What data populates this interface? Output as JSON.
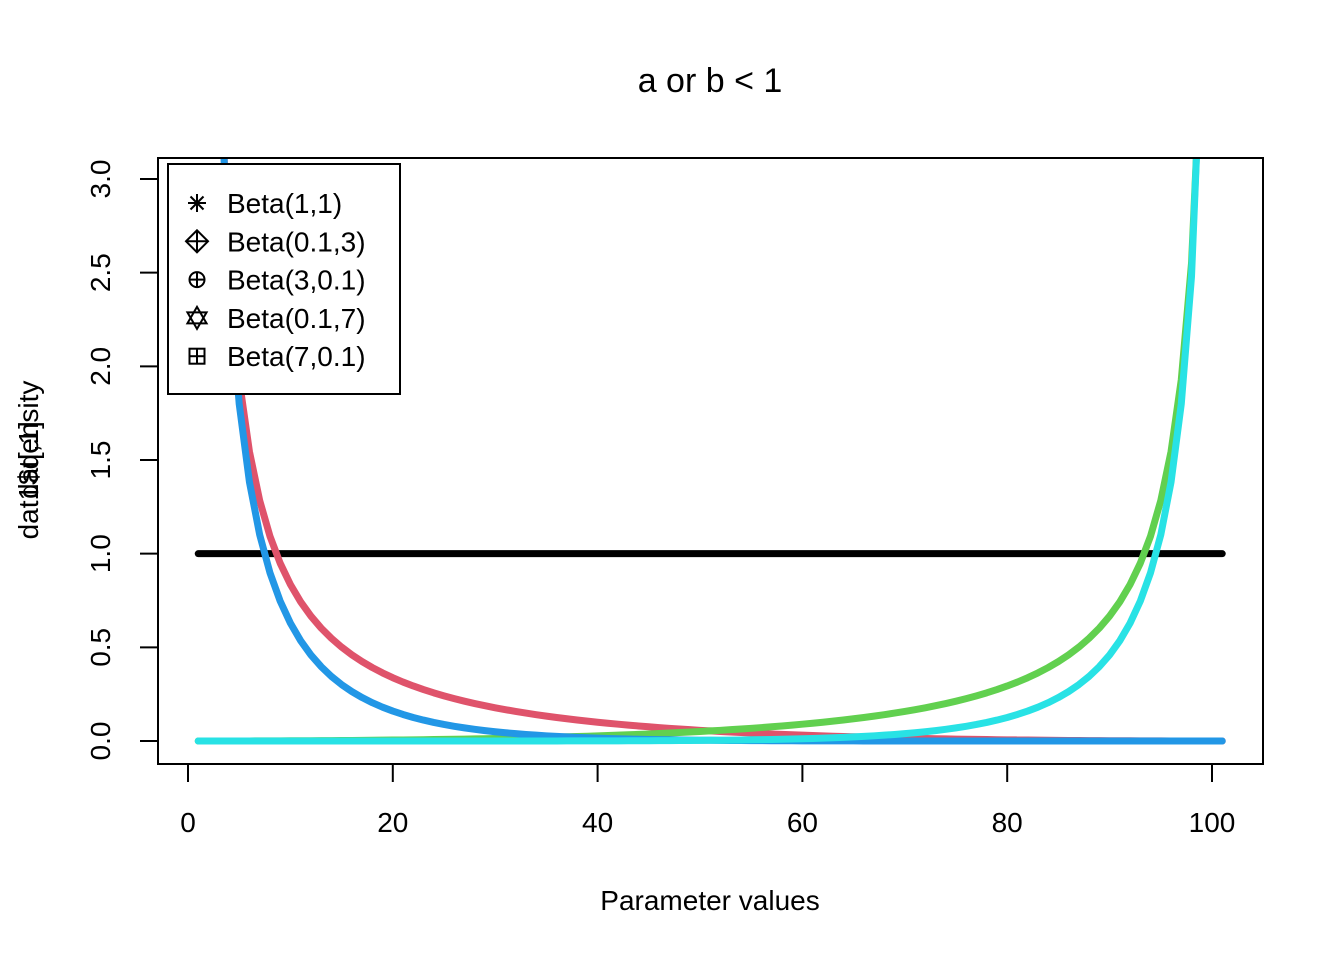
{
  "chart_data": {
    "type": "line",
    "title": "a or b  < 1",
    "xlabel": "Parameter values",
    "ylabel": "dat1$density",
    "ylabel_overprint": "dat[,1]",
    "xlim": [
      1,
      101
    ],
    "ylim": [
      0,
      3
    ],
    "xticks": [
      0,
      20,
      40,
      60,
      80,
      100
    ],
    "yticks": [
      0.0,
      0.5,
      1.0,
      1.5,
      2.0,
      2.5,
      3.0
    ],
    "xtick_labels": [
      "0",
      "20",
      "40",
      "60",
      "80",
      "100"
    ],
    "ytick_labels": [
      "0.0",
      "0.5",
      "1.0",
      "1.5",
      "2.0",
      "2.5",
      "3.0"
    ],
    "grid": false,
    "legend_position": "top-left",
    "series": [
      {
        "name": "Beta(1,1)",
        "a": 1,
        "b": 1,
        "color": "#000000",
        "symbol": "asterisk"
      },
      {
        "name": "Beta(0.1,3)",
        "a": 0.1,
        "b": 3,
        "color": "#DF536B",
        "symbol": "diamond-plus"
      },
      {
        "name": "Beta(3,0.1)",
        "a": 3,
        "b": 0.1,
        "color": "#61D04F",
        "symbol": "circle-plus"
      },
      {
        "name": "Beta(0.1,7)",
        "a": 0.1,
        "b": 7,
        "color": "#2297E6",
        "symbol": "star-of-david"
      },
      {
        "name": "Beta(7,0.1)",
        "a": 7,
        "b": 0.1,
        "color": "#28E2E5",
        "symbol": "square-plus"
      }
    ]
  }
}
